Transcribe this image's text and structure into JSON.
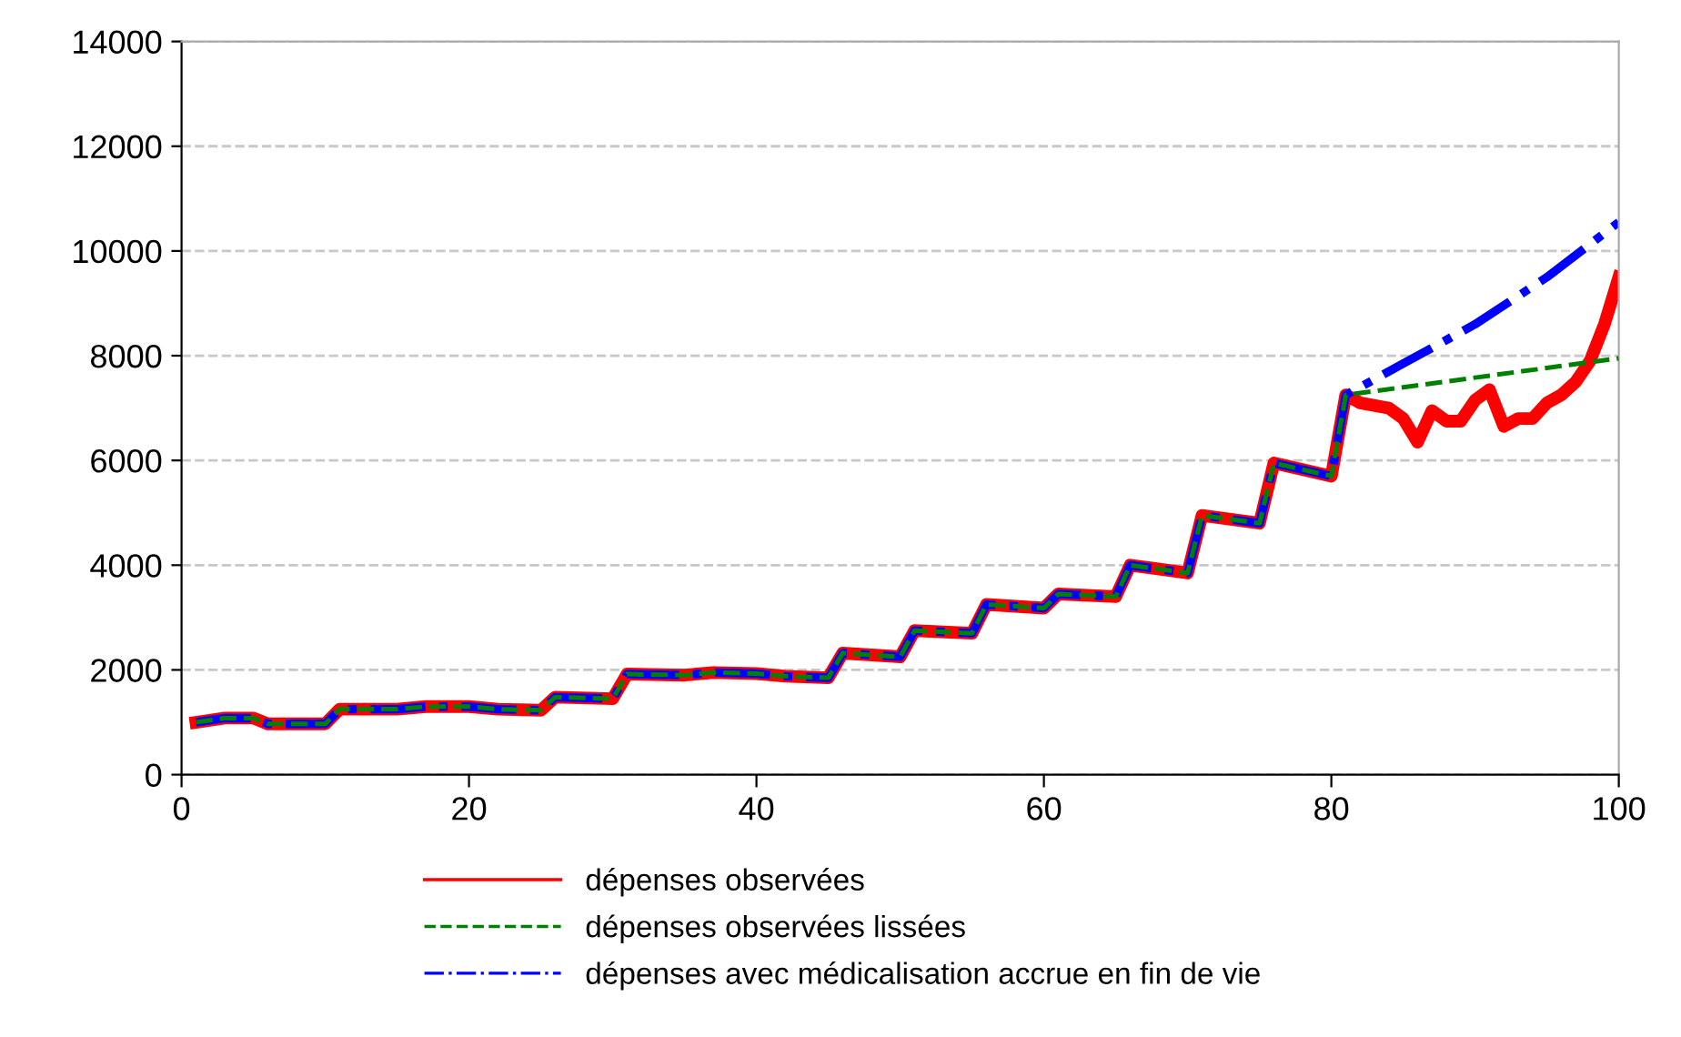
{
  "chart_data": {
    "type": "line",
    "xlim": [
      0,
      100
    ],
    "xticks": [
      0,
      20,
      40,
      60,
      80,
      100
    ],
    "ylim": [
      0,
      14000
    ],
    "yticks": [
      0,
      2000,
      4000,
      6000,
      8000,
      10000,
      12000,
      14000
    ],
    "grid": "y",
    "legend": "bottom",
    "marker": "none",
    "series": [
      {
        "name": "dépenses observées",
        "color": "#ff0000",
        "line_style": "solid",
        "x": [
          1,
          3,
          5,
          6,
          10,
          11,
          15,
          17,
          20,
          22,
          25,
          26,
          30,
          31,
          35,
          37,
          40,
          42,
          45,
          46,
          50,
          51,
          55,
          56,
          60,
          61,
          65,
          66,
          70,
          71,
          75,
          76,
          80,
          81,
          82,
          84,
          85,
          86,
          87,
          88,
          89,
          90,
          91,
          92,
          93,
          94,
          95,
          96,
          97,
          98,
          99,
          100
        ],
        "values": [
          1000,
          1080,
          1080,
          970,
          970,
          1250,
          1250,
          1300,
          1300,
          1250,
          1230,
          1480,
          1450,
          1920,
          1900,
          1950,
          1930,
          1880,
          1850,
          2320,
          2250,
          2750,
          2700,
          3250,
          3180,
          3450,
          3400,
          4000,
          3850,
          4950,
          4800,
          5950,
          5700,
          7250,
          7100,
          7000,
          6800,
          6350,
          6950,
          6750,
          6750,
          7150,
          7350,
          6650,
          6800,
          6800,
          7100,
          7250,
          7500,
          7900,
          8600,
          9500
        ]
      },
      {
        "name": "dépenses observées lissées",
        "color": "#008000",
        "line_style": "dashed",
        "x": [
          1,
          3,
          5,
          6,
          10,
          11,
          15,
          17,
          20,
          22,
          25,
          26,
          30,
          31,
          35,
          37,
          40,
          42,
          45,
          46,
          50,
          51,
          55,
          56,
          60,
          61,
          65,
          66,
          70,
          71,
          75,
          76,
          80,
          81,
          100
        ],
        "values": [
          1000,
          1080,
          1080,
          970,
          970,
          1250,
          1250,
          1300,
          1300,
          1250,
          1230,
          1480,
          1450,
          1920,
          1900,
          1950,
          1930,
          1880,
          1850,
          2320,
          2250,
          2750,
          2700,
          3250,
          3180,
          3450,
          3400,
          4000,
          3850,
          4950,
          4800,
          5950,
          5700,
          7250,
          7950
        ]
      },
      {
        "name": "dépenses avec médicalisation accrue en fin de vie",
        "color": "#0000ff",
        "line_style": "dashdot",
        "x": [
          1,
          3,
          5,
          6,
          10,
          11,
          15,
          17,
          20,
          22,
          25,
          26,
          30,
          31,
          35,
          37,
          40,
          42,
          45,
          46,
          50,
          51,
          55,
          56,
          60,
          61,
          65,
          66,
          70,
          71,
          75,
          76,
          80,
          81,
          85,
          90,
          95,
          100
        ],
        "values": [
          1000,
          1080,
          1080,
          970,
          970,
          1250,
          1250,
          1300,
          1300,
          1250,
          1230,
          1480,
          1450,
          1920,
          1900,
          1950,
          1930,
          1880,
          1850,
          2320,
          2250,
          2750,
          2700,
          3250,
          3180,
          3450,
          3400,
          4000,
          3850,
          4950,
          4800,
          5950,
          5700,
          7250,
          7850,
          8600,
          9500,
          10550
        ]
      }
    ]
  }
}
